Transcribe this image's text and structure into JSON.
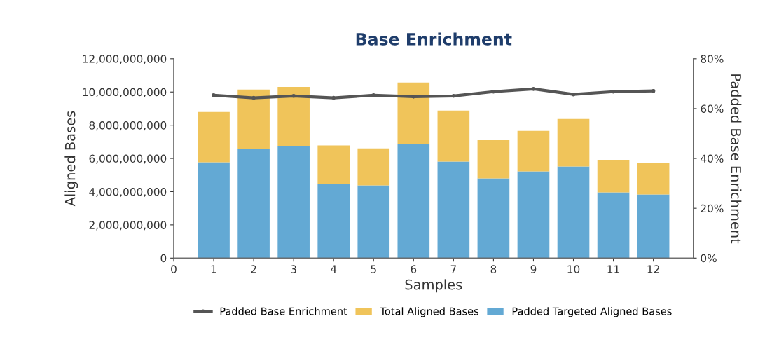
{
  "chart_data": {
    "type": "bar",
    "title": "Base Enrichment",
    "xlabel": "Samples",
    "ylabel": "Aligned Bases",
    "y2label": "Padded Base Enrichment",
    "x": [
      1,
      2,
      3,
      4,
      5,
      6,
      7,
      8,
      9,
      10,
      11,
      12
    ],
    "stacked": true,
    "series": [
      {
        "name": "Padded Targeted Aligned Bases",
        "color": "#63a9d4",
        "values": [
          5770000000,
          6570000000,
          6740000000,
          4460000000,
          4380000000,
          6860000000,
          5810000000,
          4800000000,
          5220000000,
          5520000000,
          3960000000,
          3830000000
        ]
      },
      {
        "name": "Total Aligned Bases",
        "color": "#f0c45a",
        "values": [
          3030000000,
          3580000000,
          3560000000,
          2320000000,
          2220000000,
          3710000000,
          3070000000,
          2300000000,
          2440000000,
          2860000000,
          1940000000,
          1900000000
        ]
      },
      {
        "name": "Padded Base Enrichment",
        "type": "line",
        "axis": "y2",
        "color": "#555555",
        "marker": "circle",
        "values": [
          65.4,
          64.3,
          65.1,
          64.3,
          65.4,
          64.8,
          65.1,
          66.8,
          67.9,
          65.7,
          66.8,
          67.1
        ]
      }
    ],
    "xlim": [
      0,
      13
    ],
    "xticks": [
      0,
      1,
      2,
      3,
      4,
      5,
      6,
      7,
      8,
      9,
      10,
      11,
      12
    ],
    "ylim": [
      0,
      12000000000
    ],
    "yticks": [
      {
        "value": 0,
        "label": "0"
      },
      {
        "value": 2000000000,
        "label": "2,000,000,000"
      },
      {
        "value": 4000000000,
        "label": "4,000,000,000"
      },
      {
        "value": 6000000000,
        "label": "6,000,000,000"
      },
      {
        "value": 8000000000,
        "label": "8,000,000,000"
      },
      {
        "value": 10000000000,
        "label": "10,000,000,000"
      },
      {
        "value": 12000000000,
        "label": "12,000,000,000"
      }
    ],
    "y2lim": [
      0,
      80
    ],
    "y2ticks": [
      {
        "value": 0,
        "label": "0%"
      },
      {
        "value": 20,
        "label": "20%"
      },
      {
        "value": 40,
        "label": "40%"
      },
      {
        "value": 60,
        "label": "60%"
      },
      {
        "value": 80,
        "label": "80%"
      }
    ],
    "grid": false,
    "legend": "bottom"
  }
}
